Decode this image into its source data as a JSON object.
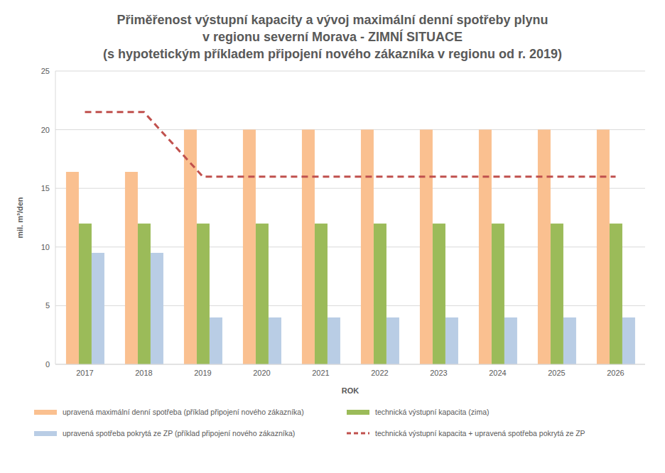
{
  "chart_data": {
    "type": "bar",
    "title": [
      "Přiměřenost výstupní kapacity a vývoj maximální denní spotřeby plynu",
      "v regionu severní Morava - ZIMNÍ SITUACE",
      "(s hypotetickým příkladem připojení nového zákazníka v regionu od r. 2019)"
    ],
    "x_label": "ROK",
    "y_label": "mil. m³/den",
    "categories": [
      "2017",
      "2018",
      "2019",
      "2020",
      "2021",
      "2022",
      "2023",
      "2024",
      "2025",
      "2026"
    ],
    "series": [
      {
        "name": "upravená maximální denní spotřeba (příklad připojení nového zákazníka)",
        "type": "bar",
        "color": "#fac090",
        "values": [
          16.4,
          16.4,
          20,
          20,
          20,
          20,
          20,
          20,
          20,
          20
        ]
      },
      {
        "name": "technická výstupní kapacita (zima)",
        "type": "bar",
        "color": "#9bbb59",
        "values": [
          12,
          12,
          12,
          12,
          12,
          12,
          12,
          12,
          12,
          12
        ]
      },
      {
        "name": "upravená spotřeba pokrytá ze ZP (příklad připojení nového zákazníka)",
        "type": "bar",
        "color": "#b9cde5",
        "values": [
          9.5,
          9.5,
          4,
          4,
          4,
          4,
          4,
          4,
          4,
          4
        ]
      },
      {
        "name": "technická výstupní kapacita + upravená spotřeba pokrytá ze ZP",
        "type": "line",
        "line_style": "dashed",
        "color": "#c0504d",
        "values": [
          21.5,
          21.5,
          16,
          16,
          16,
          16,
          16,
          16,
          16,
          16
        ]
      }
    ],
    "ylim": [
      0,
      25
    ],
    "yticks": [
      0,
      5,
      10,
      15,
      20,
      25
    ],
    "grid": true
  }
}
